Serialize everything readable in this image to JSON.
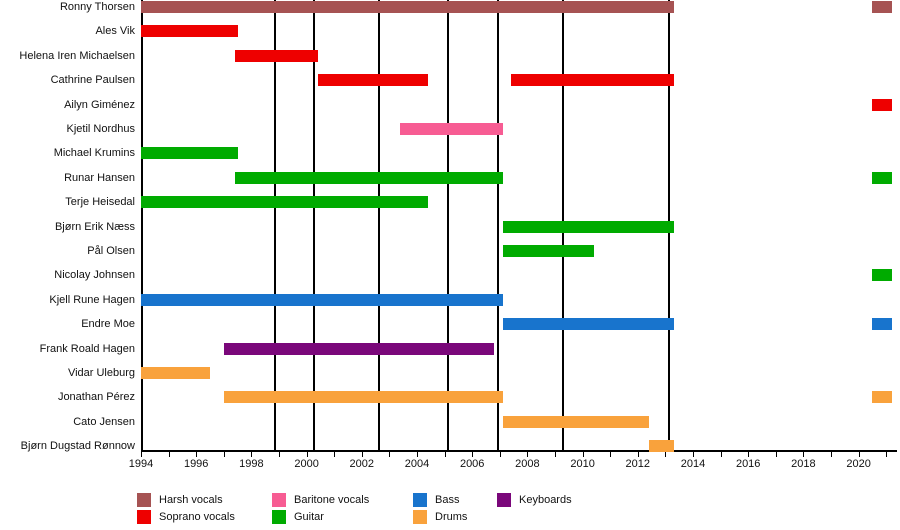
{
  "chart_data": {
    "type": "timeline",
    "description": "Band members timeline (gantt-style). Horizontal bars show each member's active years, colored by role. Vertical black lines mark album release dates.",
    "x_axis": {
      "min": 1994,
      "max": 2021.3,
      "tick_label_years": [
        1994,
        1996,
        1998,
        2000,
        2002,
        2004,
        2006,
        2008,
        2010,
        2012,
        2014,
        2016,
        2018,
        2020
      ],
      "minor_tick_every_year": true
    },
    "grid": "vertical-event-lines",
    "album_release_lines_years": [
      1998.85,
      2000.27,
      2002.62,
      2005.12,
      2006.93,
      2009.29,
      2013.13
    ],
    "roles": {
      "harsh_vocals": {
        "label": "Harsh vocals",
        "color": "#A65353"
      },
      "soprano_vocals": {
        "label": "Soprano vocals",
        "color": "#EE0000"
      },
      "baritone_vocals": {
        "label": "Baritone vocals",
        "color": "#F75C93"
      },
      "guitar": {
        "label": "Guitar",
        "color": "#00AB00"
      },
      "bass": {
        "label": "Bass",
        "color": "#1874CD"
      },
      "drums": {
        "label": "Drums",
        "color": "#F9A23C"
      },
      "keyboards": {
        "label": "Keyboards",
        "color": "#7A077A"
      }
    },
    "members": [
      {
        "name": "Ronny Thorsen",
        "role": "harsh_vocals",
        "stints": [
          [
            1994.0,
            2013.3
          ],
          [
            2020.5,
            2021.2
          ]
        ]
      },
      {
        "name": "Ales Vik",
        "role": "soprano_vocals",
        "stints": [
          [
            1994.0,
            1997.5
          ]
        ]
      },
      {
        "name": "Helena Iren Michaelsen",
        "role": "soprano_vocals",
        "stints": [
          [
            1997.4,
            2000.4
          ]
        ]
      },
      {
        "name": "Cathrine Paulsen",
        "role": "soprano_vocals",
        "stints": [
          [
            2000.4,
            2004.4
          ],
          [
            2007.4,
            2013.3
          ]
        ]
      },
      {
        "name": "Ailyn Giménez",
        "role": "soprano_vocals",
        "stints": [
          [
            2020.5,
            2021.2
          ]
        ]
      },
      {
        "name": "Kjetil Nordhus",
        "role": "baritone_vocals",
        "stints": [
          [
            2003.4,
            2007.1
          ]
        ]
      },
      {
        "name": "Michael Krumins",
        "role": "guitar",
        "stints": [
          [
            1994.0,
            1997.5
          ]
        ]
      },
      {
        "name": "Runar Hansen",
        "role": "guitar",
        "stints": [
          [
            1997.4,
            2007.1
          ],
          [
            2020.5,
            2021.2
          ]
        ]
      },
      {
        "name": "Terje Heisedal",
        "role": "guitar",
        "stints": [
          [
            1994.0,
            2004.4
          ]
        ]
      },
      {
        "name": "Bjørn Erik Næss",
        "role": "guitar",
        "stints": [
          [
            2007.1,
            2013.3
          ]
        ]
      },
      {
        "name": "Pål Olsen",
        "role": "guitar",
        "stints": [
          [
            2007.1,
            2010.4
          ]
        ]
      },
      {
        "name": "Nicolay Johnsen",
        "role": "guitar",
        "stints": [
          [
            2020.5,
            2021.2
          ]
        ]
      },
      {
        "name": "Kjell Rune Hagen",
        "role": "bass",
        "stints": [
          [
            1994.0,
            2007.1
          ]
        ]
      },
      {
        "name": "Endre Moe",
        "role": "bass",
        "stints": [
          [
            2007.1,
            2013.3
          ],
          [
            2020.5,
            2021.2
          ]
        ]
      },
      {
        "name": "Frank Roald Hagen",
        "role": "keyboards",
        "stints": [
          [
            1997.0,
            2006.8
          ]
        ]
      },
      {
        "name": "Vidar Uleburg",
        "role": "drums",
        "stints": [
          [
            1994.0,
            1996.5
          ]
        ]
      },
      {
        "name": "Jonathan Pérez",
        "role": "drums",
        "stints": [
          [
            1997.0,
            2007.1
          ],
          [
            2020.5,
            2021.2
          ]
        ]
      },
      {
        "name": "Cato Jensen",
        "role": "drums",
        "stints": [
          [
            2007.1,
            2012.4
          ]
        ]
      },
      {
        "name": "Bjørn Dugstad Rønnow",
        "role": "drums",
        "stints": [
          [
            2012.4,
            2013.3
          ]
        ]
      }
    ],
    "legend": {
      "position": "bottom",
      "columns": [
        [
          "harsh_vocals",
          "soprano_vocals"
        ],
        [
          "baritone_vocals",
          "guitar"
        ],
        [
          "bass",
          "drums"
        ],
        [
          "keyboards"
        ]
      ]
    }
  }
}
